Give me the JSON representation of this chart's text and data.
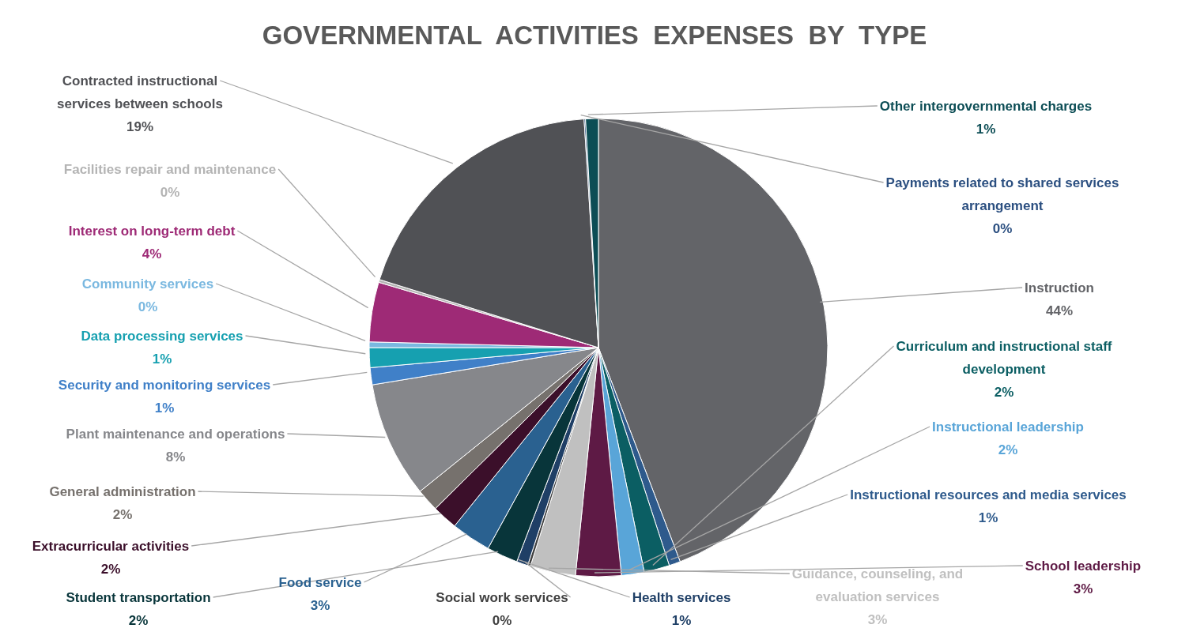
{
  "chart_data": {
    "type": "pie",
    "title": "GOVERNMENTAL  ACTIVITIES  EXPENSES  BY  TYPE",
    "categories": [
      "Instruction",
      "Instructional resources and media services",
      "Curriculum and instructional staff development",
      "Instructional leadership",
      "School leadership",
      "Guidance, counseling, and evaluation services",
      "Social work services",
      "Health services",
      "Student transportation",
      "Food service",
      "Extracurricular activities",
      "General administration",
      "Plant maintenance and operations",
      "Security and monitoring services",
      "Data processing services",
      "Community services",
      "Interest on long-term debt",
      "Facilities repair and maintenance",
      "Contracted instructional services between schools",
      "Payments related to shared services arrangement",
      "Other intergovernmental charges"
    ],
    "values": [
      44.2,
      0.8,
      1.8,
      1.6,
      3.2,
      3.2,
      0.2,
      0.8,
      2.2,
      2.8,
      1.8,
      1.6,
      8.2,
      1.2,
      1.4,
      0.4,
      4.2,
      0.2,
      19.2,
      0.1,
      0.9
    ],
    "value_labels": [
      "44%",
      "1%",
      "2%",
      "2%",
      "3%",
      "3%",
      "0%",
      "1%",
      "2%",
      "3%",
      "2%",
      "2%",
      "8%",
      "1%",
      "1%",
      "0%",
      "4%",
      "0%",
      "19%",
      "0%",
      "1%"
    ],
    "colors": [
      "#636468",
      "#2e5a8c",
      "#0b5e63",
      "#59a5d8",
      "#5e1a45",
      "#c0c0c0",
      "#404040",
      "#1f3f66",
      "#08353a",
      "#2a6190",
      "#3b0f2a",
      "#76716d",
      "#86878b",
      "#4080c8",
      "#16a0b0",
      "#7ab8e0",
      "#9e2a76",
      "#b4b4b4",
      "#505155",
      "#2b4f80",
      "#0c4d55"
    ]
  }
}
